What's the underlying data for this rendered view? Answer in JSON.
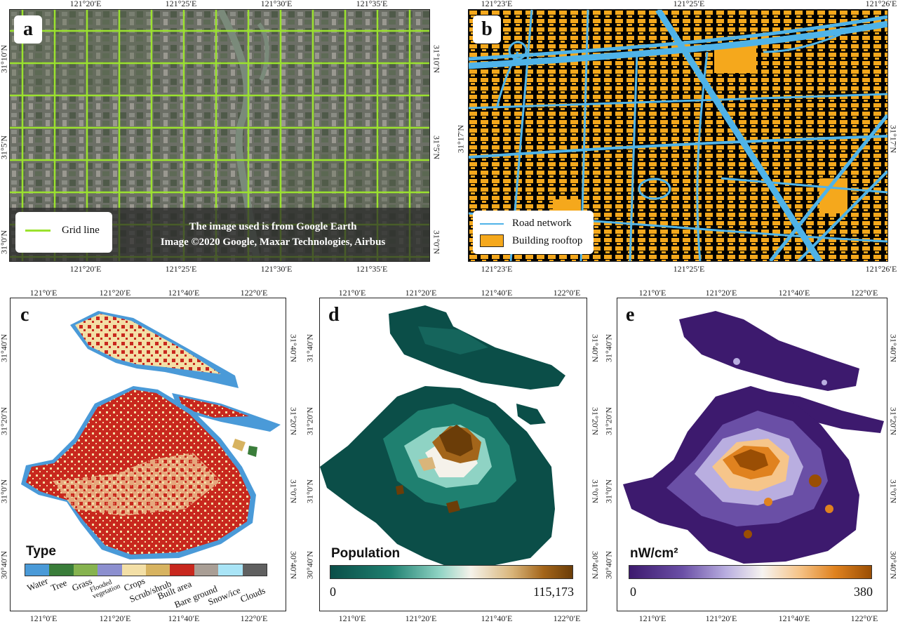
{
  "panels": {
    "a": {
      "letter": "a",
      "top_ticks": [
        "121°20′E",
        "121°25′E",
        "121°30′E",
        "121°35′E"
      ],
      "bottom_ticks": [
        "121°20′E",
        "121°25′E",
        "121°30′E",
        "121°35′E"
      ],
      "left_ticks": [
        "31°10′N",
        "31°5′N",
        "31°0′N"
      ],
      "right_ticks": [
        "31°10′N",
        "31°5′N",
        "31°0′N"
      ],
      "legend_label": "Grid line",
      "credit_line1": "The image used is from Google Earth",
      "credit_line2": "Image ©2020 Google, Maxar Technologies, Airbus"
    },
    "b": {
      "letter": "b",
      "top_ticks": [
        "121°23′E",
        "121°25′E",
        "121°26′E"
      ],
      "bottom_ticks": [
        "121°23′E",
        "121°25′E",
        "121°26′E"
      ],
      "left_ticks": [
        "31°17′N"
      ],
      "right_ticks": [
        "31°17′N"
      ],
      "legend_road": "Road network",
      "legend_building": "Building rooftop"
    },
    "c": {
      "letter": "c",
      "top_ticks": [
        "121°0′E",
        "121°20′E",
        "121°40′E",
        "122°0′E"
      ],
      "bottom_ticks": [
        "121°0′E",
        "121°20′E",
        "121°40′E",
        "122°0′E"
      ],
      "left_ticks": [
        "31°40′N",
        "31°20′N",
        "31°0′N",
        "30°40′N"
      ],
      "right_ticks": [
        "31°40′N",
        "31°20′N",
        "31°0′N",
        "30°40′N"
      ],
      "legend_title": "Type",
      "types": [
        {
          "label": "Water",
          "color": "#4a9ad8"
        },
        {
          "label": "Tree",
          "color": "#3a7d3a"
        },
        {
          "label": "Grass",
          "color": "#86b34f"
        },
        {
          "label": "Flooded vegetation",
          "color": "#8c8fcf"
        },
        {
          "label": "Crops",
          "color": "#f3dfa6"
        },
        {
          "label": "Scrub/shrub",
          "color": "#d7b360"
        },
        {
          "label": "Built area",
          "color": "#c8281e"
        },
        {
          "label": "Bare ground",
          "color": "#a99e95"
        },
        {
          "label": "Snow/ice",
          "color": "#a9e4f6"
        },
        {
          "label": "Clouds",
          "color": "#606060"
        }
      ]
    },
    "d": {
      "letter": "d",
      "top_ticks": [
        "121°0′E",
        "121°20′E",
        "121°40′E",
        "122°0′E"
      ],
      "bottom_ticks": [
        "121°0′E",
        "121°20′E",
        "121°40′E",
        "122°0′E"
      ],
      "left_ticks": [
        "31°40′N",
        "31°20′N",
        "31°0′N",
        "30°40′N"
      ],
      "right_ticks": [
        "31°40′N",
        "31°20′N",
        "31°0′N",
        "30°40′N"
      ],
      "legend_title": "Population",
      "min_label": "0",
      "max_label": "115,173",
      "colors": [
        "#0b4e48",
        "#1f8070",
        "#8fd3c4",
        "#f5f2ea",
        "#d9b57a",
        "#a3651a",
        "#6b3d08"
      ]
    },
    "e": {
      "letter": "e",
      "top_ticks": [
        "121°0′E",
        "121°20′E",
        "121°40′E",
        "122°0′E"
      ],
      "bottom_ticks": [
        "121°0′E",
        "121°20′E",
        "121°40′E",
        "122°0′E"
      ],
      "left_ticks": [
        "31°40′N",
        "31°20′N",
        "31°0′N",
        "30°40′N"
      ],
      "right_ticks": [
        "31°40′N",
        "31°20′N",
        "31°0′N",
        "30°40′N"
      ],
      "legend_title": "nW/cm²",
      "min_label": "0",
      "max_label": "380",
      "colors": [
        "#3d1a6e",
        "#6a4fa6",
        "#b9aee0",
        "#f6f3f0",
        "#f6c58a",
        "#e0821f",
        "#9a4e04"
      ]
    }
  }
}
